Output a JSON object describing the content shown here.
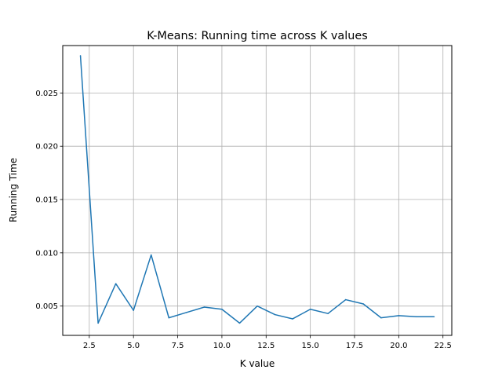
{
  "chart_data": {
    "type": "line",
    "title": "K-Means: Running time across K values",
    "xlabel": "K value",
    "ylabel": "Running Time",
    "xlim": [
      1.0,
      23.0
    ],
    "ylim": [
      0.00225,
      0.02945
    ],
    "xticks": [
      2.5,
      5.0,
      7.5,
      10.0,
      12.5,
      15.0,
      17.5,
      20.0,
      22.5
    ],
    "xtick_labels": [
      "2.5",
      "5.0",
      "7.5",
      "10.0",
      "12.5",
      "15.0",
      "17.5",
      "20.0",
      "22.5"
    ],
    "yticks": [
      0.005,
      0.01,
      0.015,
      0.02,
      0.025
    ],
    "ytick_labels": [
      "0.005",
      "0.010",
      "0.015",
      "0.020",
      "0.025"
    ],
    "grid": true,
    "line_color": "#1f77b4",
    "series": [
      {
        "x": [
          2,
          3,
          4,
          5,
          6,
          7,
          8,
          9,
          10,
          11,
          12,
          13,
          14,
          15,
          16,
          17,
          18,
          19,
          20,
          21,
          22
        ],
        "values": [
          0.0285,
          0.0034,
          0.0071,
          0.0046,
          0.0098,
          0.0039,
          0.0044,
          0.0049,
          0.0047,
          0.0034,
          0.005,
          0.0042,
          0.0038,
          0.0047,
          0.0043,
          0.0056,
          0.0052,
          0.0039,
          0.0041,
          0.004,
          0.004
        ]
      }
    ]
  }
}
